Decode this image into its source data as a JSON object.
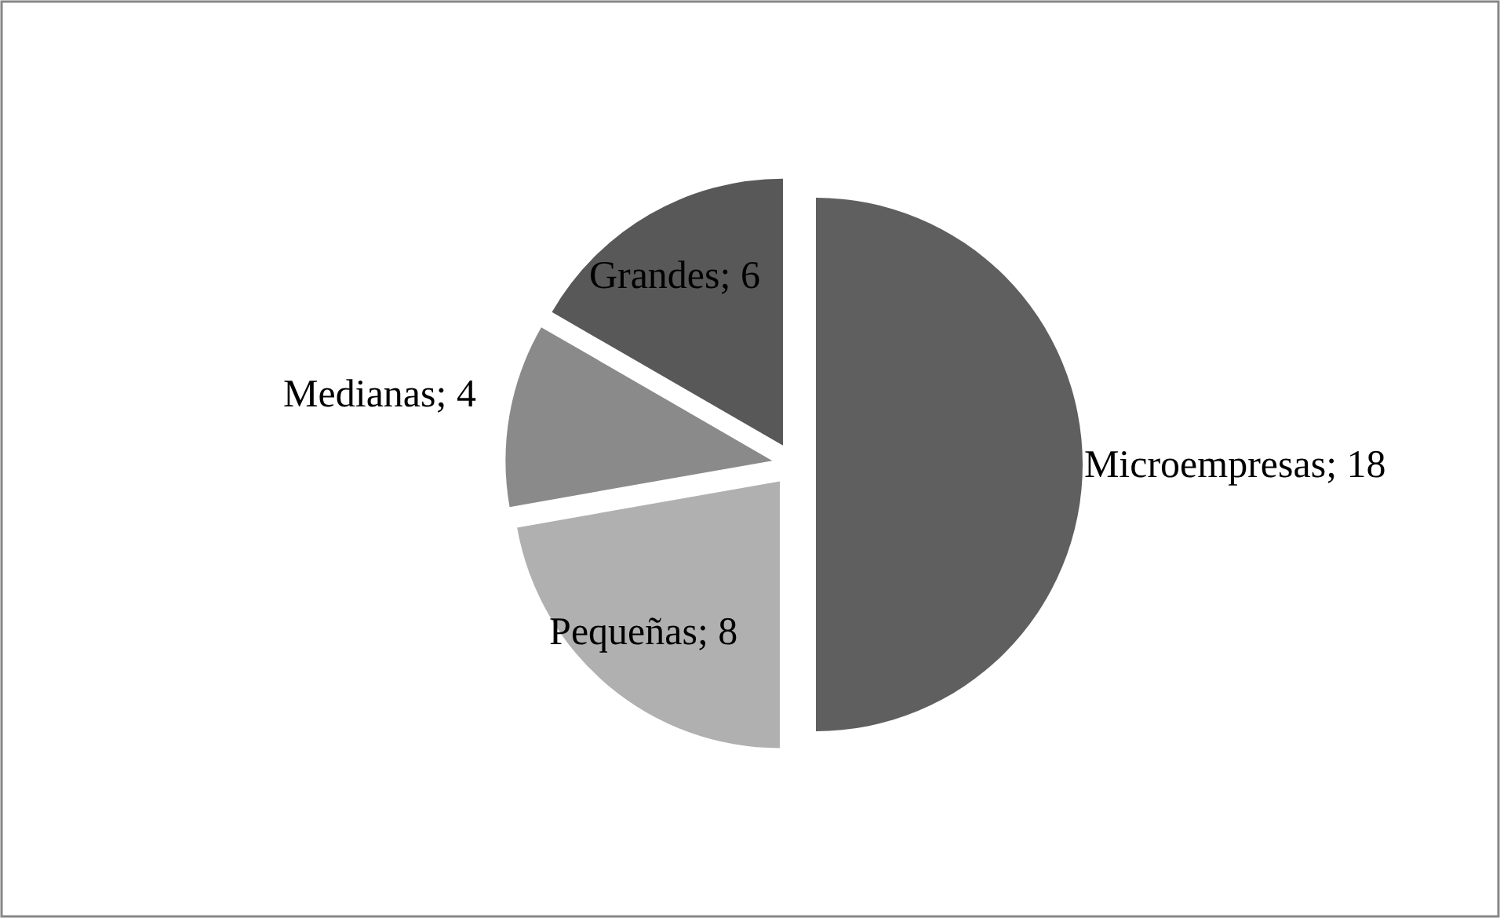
{
  "chart_data": {
    "type": "pie",
    "categories": [
      "Microempresas",
      "Pequeñas",
      "Medianas",
      "Grandes"
    ],
    "values": [
      18,
      8,
      4,
      6
    ],
    "colors": [
      "#5f5f5f",
      "#b0b0b0",
      "#8a8a8a",
      "#585858"
    ],
    "value_labels": [
      "; 18",
      "; 8",
      "; 4",
      "; 6"
    ]
  }
}
